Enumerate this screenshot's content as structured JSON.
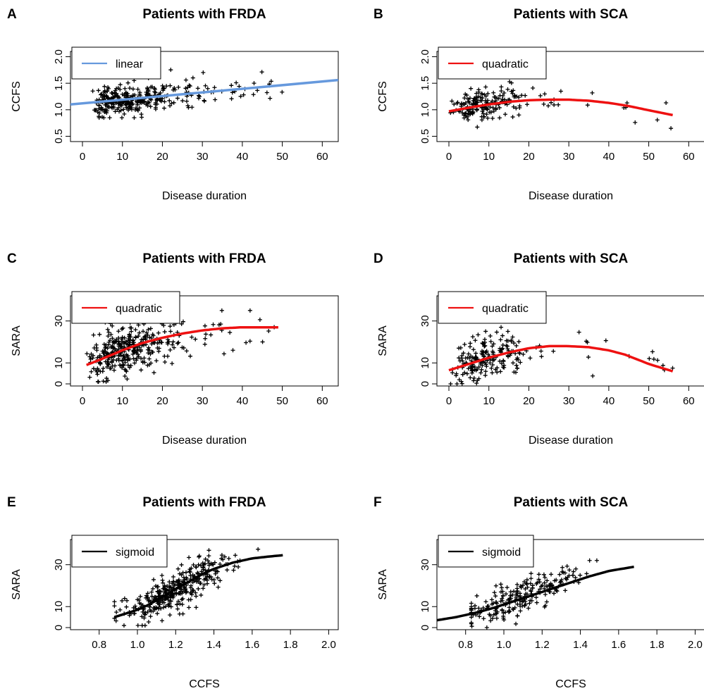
{
  "chart_data": [
    {
      "panel": "A",
      "type": "scatter",
      "title": "Patients with FRDA",
      "xlabel": "Disease duration",
      "ylabel": "CCFS",
      "xlim": [
        -3,
        64
      ],
      "ylim": [
        0.4,
        2.1
      ],
      "xticks": [
        0,
        10,
        20,
        30,
        40,
        50,
        60
      ],
      "yticks": [
        0.5,
        1.0,
        1.5,
        2.0
      ],
      "ytick_labels": [
        "0.5",
        "1.0",
        "1.5",
        "2.0"
      ],
      "legend": {
        "label": "linear",
        "color": "#6699dd",
        "position": "top-left"
      },
      "fit": {
        "model": "linear",
        "color": "#6699dd",
        "x": [
          -3,
          64
        ],
        "y": [
          1.1,
          1.56
        ]
      },
      "points": {
        "gen": "frda_ccfs",
        "n": 340,
        "seed": 11
      }
    },
    {
      "panel": "B",
      "type": "scatter",
      "title": "Patients with SCA",
      "xlabel": "Disease duration",
      "ylabel": "CCFS",
      "xlim": [
        -3,
        64
      ],
      "ylim": [
        0.4,
        2.1
      ],
      "xticks": [
        0,
        10,
        20,
        30,
        40,
        50,
        60
      ],
      "yticks": [
        0.5,
        1.0,
        1.5,
        2.0
      ],
      "ytick_labels": [
        "0.5",
        "1.0",
        "1.5",
        "2.0"
      ],
      "legend": {
        "label": "quadratic",
        "color": "#ee1111",
        "position": "top-left"
      },
      "fit": {
        "model": "quadratic",
        "color": "#ee1111",
        "x": [
          0,
          5,
          10,
          15,
          20,
          25,
          30,
          35,
          40,
          45,
          50,
          56
        ],
        "y": [
          0.97,
          1.04,
          1.1,
          1.15,
          1.18,
          1.19,
          1.19,
          1.17,
          1.13,
          1.07,
          0.99,
          0.9
        ]
      },
      "points": {
        "gen": "sca_ccfs",
        "n": 190,
        "seed": 23
      }
    },
    {
      "panel": "C",
      "type": "scatter",
      "title": "Patients with FRDA",
      "xlabel": "Disease duration",
      "ylabel": "SARA",
      "xlim": [
        -3,
        64
      ],
      "ylim": [
        -1,
        42
      ],
      "xticks": [
        0,
        10,
        20,
        30,
        40,
        50,
        60
      ],
      "yticks": [
        0,
        10,
        30
      ],
      "ytick_labels": [
        "0",
        "10",
        "30"
      ],
      "legend": {
        "label": "quadratic",
        "color": "#ee1111",
        "position": "top-left"
      },
      "fit": {
        "model": "quadratic",
        "color": "#ee1111",
        "x": [
          1,
          5,
          10,
          15,
          20,
          25,
          30,
          35,
          40,
          45,
          49
        ],
        "y": [
          9,
          12,
          16,
          19.5,
          22,
          24,
          25.5,
          26.5,
          27,
          27,
          27
        ]
      },
      "points": {
        "gen": "frda_sara",
        "n": 350,
        "seed": 37
      }
    },
    {
      "panel": "D",
      "type": "scatter",
      "title": "Patients with SCA",
      "xlabel": "Disease duration",
      "ylabel": "SARA",
      "xlim": [
        -3,
        64
      ],
      "ylim": [
        -1,
        42
      ],
      "xticks": [
        0,
        10,
        20,
        30,
        40,
        50,
        60
      ],
      "yticks": [
        0,
        10,
        30
      ],
      "ytick_labels": [
        "0",
        "10",
        "30"
      ],
      "legend": {
        "label": "quadratic",
        "color": "#ee1111",
        "position": "top-left"
      },
      "fit": {
        "model": "quadratic",
        "color": "#ee1111",
        "x": [
          0,
          5,
          10,
          15,
          20,
          25,
          30,
          35,
          40,
          44,
          50,
          56
        ],
        "y": [
          6.5,
          9.5,
          12.5,
          15,
          17,
          18,
          18,
          17.5,
          16,
          14,
          9.5,
          6
        ]
      },
      "points": {
        "gen": "sca_sara",
        "n": 200,
        "seed": 41
      }
    },
    {
      "panel": "E",
      "type": "scatter",
      "title": "Patients with FRDA",
      "xlabel": "CCFS",
      "ylabel": "SARA",
      "xlim": [
        0.65,
        2.05
      ],
      "ylim": [
        -1,
        42
      ],
      "xticks": [
        0.8,
        1.0,
        1.2,
        1.4,
        1.6,
        1.8,
        2.0
      ],
      "xtick_labels": [
        "0.8",
        "1.0",
        "1.2",
        "1.4",
        "1.6",
        "1.8",
        "2.0"
      ],
      "yticks": [
        0,
        10,
        30
      ],
      "ytick_labels": [
        "0",
        "10",
        "30"
      ],
      "legend": {
        "label": "sigmoid",
        "color": "#000000",
        "position": "top-left"
      },
      "fit": {
        "model": "sigmoid",
        "color": "#000000",
        "x": [
          0.88,
          0.95,
          1.0,
          1.05,
          1.1,
          1.15,
          1.2,
          1.25,
          1.3,
          1.35,
          1.4,
          1.5,
          1.6,
          1.7,
          1.76
        ],
        "y": [
          5,
          7,
          8.5,
          10.5,
          13,
          15.5,
          18.5,
          21,
          23.5,
          26,
          28,
          31,
          33,
          34,
          34.5
        ]
      },
      "points": {
        "gen": "frda_ccfs_sara",
        "n": 350,
        "seed": 53
      }
    },
    {
      "panel": "F",
      "type": "scatter",
      "title": "Patients with SCA",
      "xlabel": "CCFS",
      "ylabel": "SARA",
      "xlim": [
        0.65,
        2.05
      ],
      "ylim": [
        -1,
        42
      ],
      "xticks": [
        0.8,
        1.0,
        1.2,
        1.4,
        1.6,
        1.8,
        2.0
      ],
      "xtick_labels": [
        "0.8",
        "1.0",
        "1.2",
        "1.4",
        "1.6",
        "1.8",
        "2.0"
      ],
      "yticks": [
        0,
        10,
        30
      ],
      "ytick_labels": [
        "0",
        "10",
        "30"
      ],
      "legend": {
        "label": "sigmoid",
        "color": "#000000",
        "position": "top-left"
      },
      "fit": {
        "model": "sigmoid",
        "color": "#000000",
        "x": [
          0.65,
          0.75,
          0.85,
          0.95,
          1.05,
          1.15,
          1.25,
          1.35,
          1.45,
          1.55,
          1.68
        ],
        "y": [
          3.5,
          5,
          7,
          9.5,
          12.5,
          15.5,
          18.5,
          21.5,
          24.5,
          27,
          29
        ]
      },
      "points": {
        "gen": "sca_ccfs_sara",
        "n": 220,
        "seed": 67
      }
    }
  ]
}
